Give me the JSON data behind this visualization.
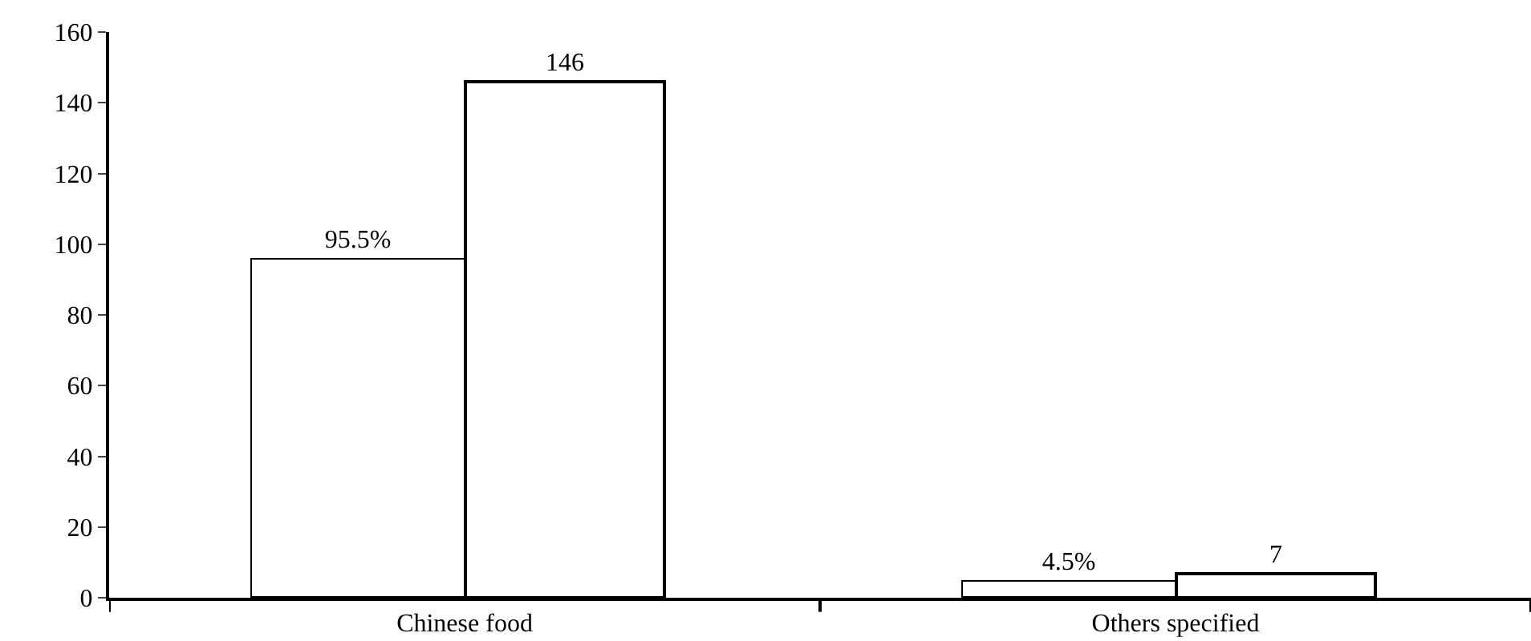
{
  "chart_data": {
    "type": "bar",
    "categories": [
      "Chinese food",
      "Others specified"
    ],
    "series": [
      {
        "color": "#ffffff",
        "values": [
          95.5,
          4.5
        ],
        "value_labels": [
          "95.5%",
          "4.5%"
        ]
      },
      {
        "color": "#ffffff",
        "values": [
          146,
          7
        ]
      }
    ],
    "ylim": [
      0,
      160
    ],
    "yticks": [
      0,
      20,
      40,
      60,
      80,
      100,
      120,
      140,
      160
    ],
    "grid": false,
    "data_labels": true
  }
}
